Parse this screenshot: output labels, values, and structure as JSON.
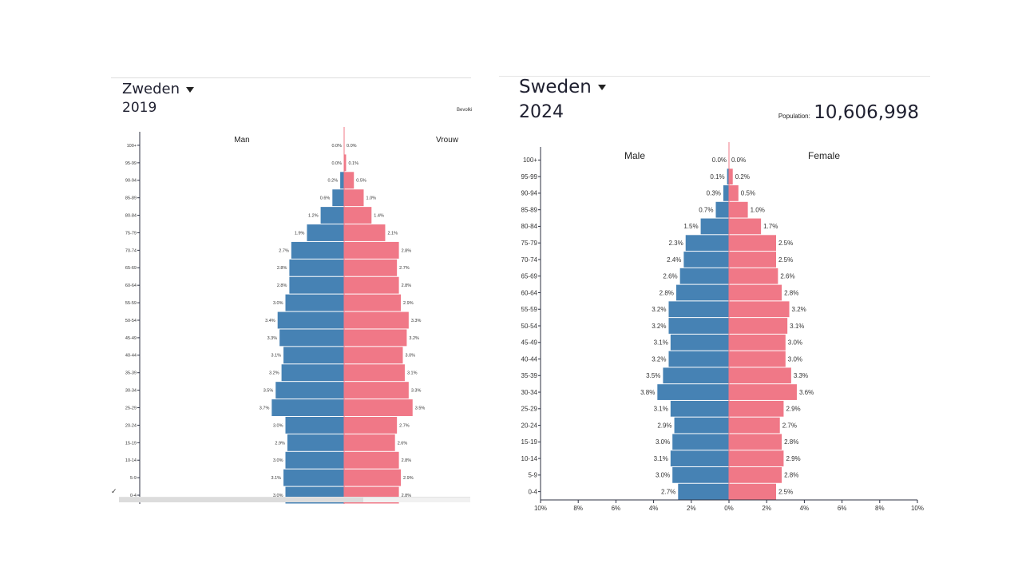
{
  "colors": {
    "male": "#4682b4",
    "female": "#f07887",
    "axis": "#2d3142",
    "center_line": "#f07887"
  },
  "left": {
    "country": "Zweden",
    "year": "2019",
    "population_label": "Bevolki",
    "check_mark": "✓"
  },
  "right": {
    "country": "Sweden",
    "year": "2024",
    "population_label": "Population:",
    "population_value": "10,606,998"
  },
  "chart_data": [
    {
      "type": "bar",
      "orientation": "horizontal-pyramid",
      "title": "Zweden 2019",
      "categories": [
        "0-4",
        "5-9",
        "10-14",
        "15-19",
        "20-24",
        "25-29",
        "30-34",
        "35-39",
        "40-44",
        "45-49",
        "50-54",
        "55-59",
        "60-64",
        "65-69",
        "70-74",
        "75-79",
        "80-84",
        "85-89",
        "90-94",
        "95-99",
        "100+"
      ],
      "series": [
        {
          "name": "Man",
          "values": [
            3.0,
            3.1,
            3.0,
            2.9,
            3.0,
            3.7,
            3.5,
            3.2,
            3.1,
            3.3,
            3.4,
            3.0,
            2.8,
            2.8,
            2.7,
            1.9,
            1.2,
            0.6,
            0.2,
            0.0,
            0.0
          ],
          "labels": [
            "3.0%",
            "3.1%",
            "3.0%",
            "2.9%",
            "3.0%",
            "3.7%",
            "3.5%",
            "3.2%",
            "3.1%",
            "3.3%",
            "3.4%",
            "3.0%",
            "2.8%",
            "2.8%",
            "2.7%",
            "1.9%",
            "1.2%",
            "0.6%",
            "0.2%",
            "0.0%",
            "0.0%"
          ]
        },
        {
          "name": "Vrouw",
          "values": [
            2.8,
            2.9,
            2.8,
            2.6,
            2.7,
            3.5,
            3.3,
            3.1,
            3.0,
            3.2,
            3.3,
            2.9,
            2.8,
            2.7,
            2.8,
            2.1,
            1.4,
            1.0,
            0.5,
            0.1,
            0.0
          ],
          "labels": [
            "2.8%",
            "2.9%",
            "2.8%",
            "2.6%",
            "2.7%",
            "3.5%",
            "3.3%",
            "3.1%",
            "3.0%",
            "3.2%",
            "3.3%",
            "2.9%",
            "2.8%",
            "2.7%",
            "2.8%",
            "2.1%",
            "1.4%",
            "1.0%",
            "0.5%",
            "0.1%",
            "0.0%"
          ]
        }
      ],
      "xlim": [
        -10,
        10
      ],
      "xaxis_ticks": []
    },
    {
      "type": "bar",
      "orientation": "horizontal-pyramid",
      "title": "Sweden 2024",
      "categories": [
        "0-4",
        "5-9",
        "10-14",
        "15-19",
        "20-24",
        "25-29",
        "30-34",
        "35-39",
        "40-44",
        "45-49",
        "50-54",
        "55-59",
        "60-64",
        "65-69",
        "70-74",
        "75-79",
        "80-84",
        "85-89",
        "90-94",
        "95-99",
        "100+"
      ],
      "series": [
        {
          "name": "Male",
          "values": [
            2.7,
            3.0,
            3.1,
            3.0,
            2.9,
            3.1,
            3.8,
            3.5,
            3.2,
            3.1,
            3.2,
            3.2,
            2.8,
            2.6,
            2.4,
            2.3,
            1.5,
            0.7,
            0.3,
            0.1,
            0.0
          ],
          "labels": [
            "2.7%",
            "3.0%",
            "3.1%",
            "3.0%",
            "2.9%",
            "3.1%",
            "3.8%",
            "3.5%",
            "3.2%",
            "3.1%",
            "3.2%",
            "3.2%",
            "2.8%",
            "2.6%",
            "2.4%",
            "2.3%",
            "1.5%",
            "0.7%",
            "0.3%",
            "0.1%",
            "0.0%"
          ]
        },
        {
          "name": "Female",
          "values": [
            2.5,
            2.8,
            2.9,
            2.8,
            2.7,
            2.9,
            3.6,
            3.3,
            3.0,
            3.0,
            3.1,
            3.2,
            2.8,
            2.6,
            2.5,
            2.5,
            1.7,
            1.0,
            0.5,
            0.2,
            0.0
          ],
          "labels": [
            "2.5%",
            "2.8%",
            "2.9%",
            "2.8%",
            "2.7%",
            "2.9%",
            "3.6%",
            "3.3%",
            "3.0%",
            "3.0%",
            "3.1%",
            "3.2%",
            "2.8%",
            "2.6%",
            "2.5%",
            "2.5%",
            "1.7%",
            "1.0%",
            "0.5%",
            "0.2%",
            "0.0%"
          ]
        }
      ],
      "xlim": [
        -10,
        10
      ],
      "xaxis_ticks": [
        "10%",
        "8%",
        "6%",
        "4%",
        "2%",
        "0%",
        "2%",
        "4%",
        "6%",
        "8%",
        "10%"
      ]
    }
  ]
}
